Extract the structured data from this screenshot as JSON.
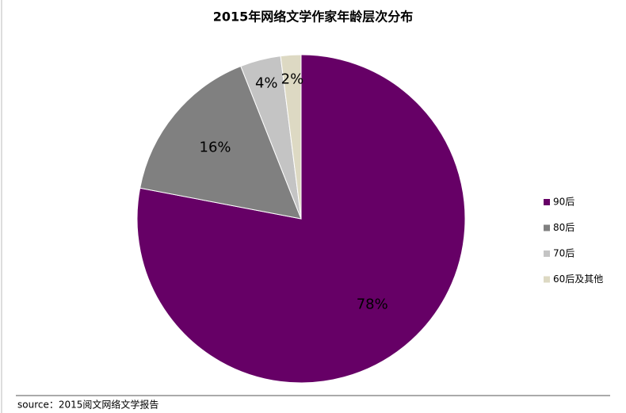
{
  "chart_data": {
    "type": "pie",
    "title": "2015年网络文学作家年龄层次分布",
    "categories": [
      "90后",
      "80后",
      "70后",
      "60后及其他"
    ],
    "values": [
      78,
      16,
      4,
      2
    ],
    "value_labels": [
      "78%",
      "16%",
      "4%",
      "2%"
    ],
    "colors": [
      "#660066",
      "#808080",
      "#c4c4c4",
      "#ddd9c3"
    ],
    "legend": "right",
    "source": "source：2015阅文网络文学报告"
  }
}
